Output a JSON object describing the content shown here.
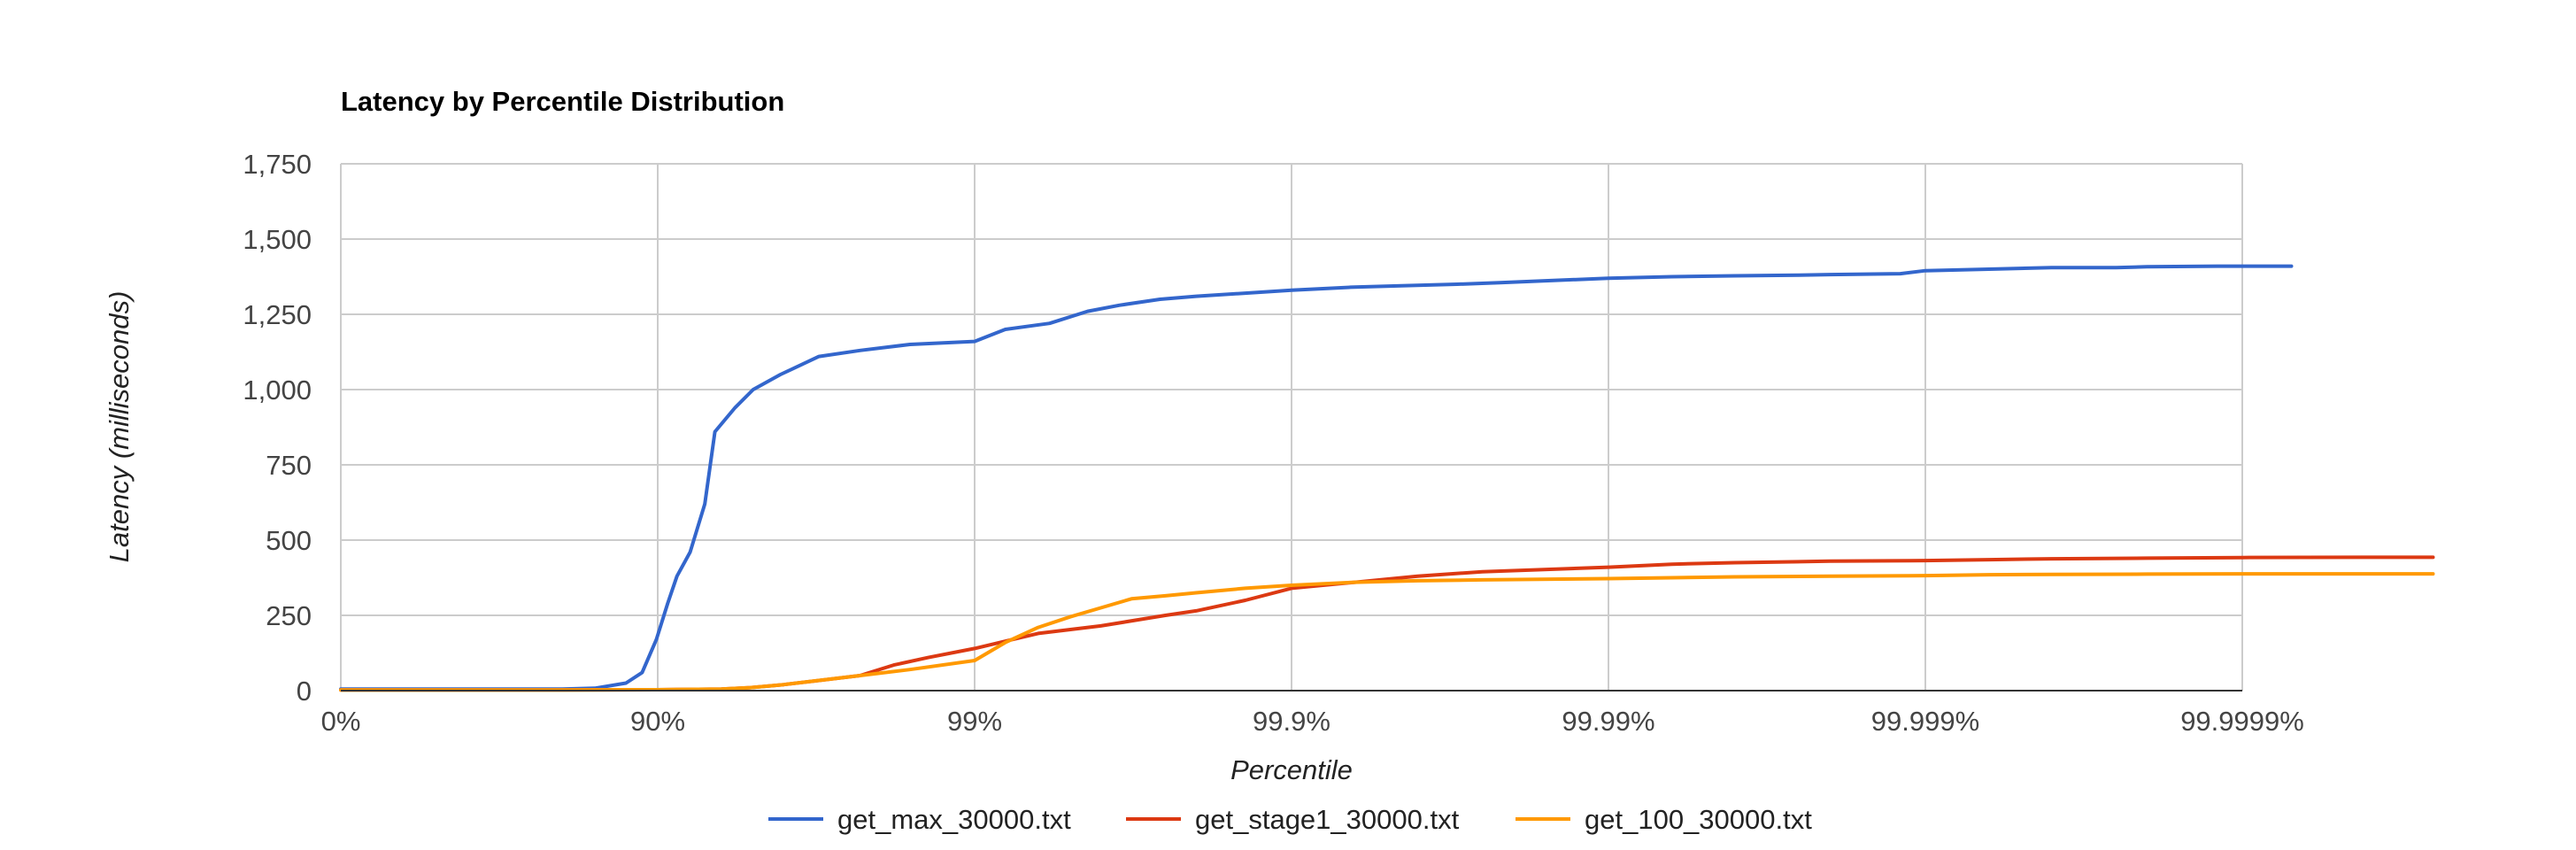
{
  "chart_data": {
    "type": "line",
    "title": "Latency by Percentile Distribution",
    "xlabel": "Percentile",
    "ylabel": "Latency (milliseconds)",
    "x_scale": "log-percentile",
    "x_ticks": [
      "0%",
      "90%",
      "99%",
      "99.9%",
      "99.99%",
      "99.999%",
      "99.9999%"
    ],
    "y_ticks": [
      "0",
      "250",
      "500",
      "750",
      "1,000",
      "1,250",
      "1,500",
      "1,750"
    ],
    "ylim": [
      0,
      1750
    ],
    "grid": true,
    "legend_position": "bottom",
    "series": [
      {
        "name": "get_max_30000.txt",
        "color": "#3366cc",
        "x": [
          "0%",
          "50%",
          "70%",
          "80%",
          "84.2%",
          "87.4%",
          "88.8%",
          "89.9%",
          "90.7%",
          "91.3%",
          "92.1%",
          "92.9%",
          "93.4%",
          "94.3%",
          "95%",
          "95.9%",
          "96.9%",
          "97.7%",
          "98.4%",
          "99%",
          "99.2%",
          "99.42%",
          "99.56%",
          "99.65%",
          "99.74%",
          "99.8%",
          "99.9%",
          "99.935%",
          "99.955%",
          "99.97%",
          "99.978%",
          "99.99%",
          "99.9937%",
          "99.996%",
          "99.9975%",
          "99.998%",
          "99.9988%",
          "99.999%",
          "99.99937%",
          "99.9996%",
          "99.99975%",
          "99.9998%",
          "99.99988%",
          "99.99991%",
          "99.99993%"
        ],
        "values": [
          5,
          5,
          5,
          5,
          8,
          25,
          60,
          170,
          290,
          380,
          460,
          620,
          860,
          940,
          1000,
          1050,
          1110,
          1130,
          1150,
          1160,
          1200,
          1220,
          1260,
          1280,
          1300,
          1310,
          1330,
          1340,
          1345,
          1350,
          1355,
          1370,
          1375,
          1378,
          1380,
          1382,
          1385,
          1395,
          1400,
          1405,
          1405,
          1408,
          1410,
          1410,
          1410
        ]
      },
      {
        "name": "get_stage1_30000.txt",
        "color": "#dc3912",
        "x": [
          "0%",
          "50%",
          "80%",
          "89.9%",
          "93.7%",
          "94.9%",
          "96%",
          "96.8%",
          "97.7%",
          "98.2%",
          "98.6%",
          "99%",
          "99.37%",
          "99.6%",
          "99.75%",
          "99.8%",
          "99.86%",
          "99.9%",
          "99.937%",
          "99.96%",
          "99.975%",
          "99.99%",
          "99.9937%",
          "99.996%",
          "99.998%",
          "99.999%",
          "99.99937%",
          "99.9996%",
          "99.9998%",
          "99.9999%",
          "99.99996%",
          "99.999975%"
        ],
        "values": [
          2,
          2,
          2,
          3,
          5,
          10,
          20,
          32,
          50,
          85,
          110,
          140,
          190,
          215,
          250,
          265,
          300,
          340,
          360,
          380,
          395,
          410,
          420,
          425,
          430,
          432,
          435,
          438,
          440,
          442,
          443,
          443
        ]
      },
      {
        "name": "get_100_30000.txt",
        "color": "#ff9900",
        "x": [
          "0%",
          "50%",
          "80%",
          "89.9%",
          "93.7%",
          "94.9%",
          "96%",
          "97.7%",
          "98.4%",
          "99%",
          "99.2%",
          "99.37%",
          "99.5%",
          "99.6%",
          "99.68%",
          "99.75%",
          "99.8%",
          "99.86%",
          "99.9%",
          "99.937%",
          "99.96%",
          "99.975%",
          "99.99%",
          "99.9937%",
          "99.996%",
          "99.998%",
          "99.999%",
          "99.99937%",
          "99.9996%",
          "99.9998%",
          "99.9999%",
          "99.99996%",
          "99.999975%"
        ],
        "values": [
          2,
          2,
          2,
          3,
          5,
          10,
          20,
          50,
          70,
          100,
          160,
          210,
          245,
          275,
          305,
          315,
          325,
          340,
          350,
          360,
          365,
          368,
          372,
          375,
          378,
          380,
          382,
          385,
          386,
          387,
          388,
          388,
          388
        ]
      }
    ]
  }
}
